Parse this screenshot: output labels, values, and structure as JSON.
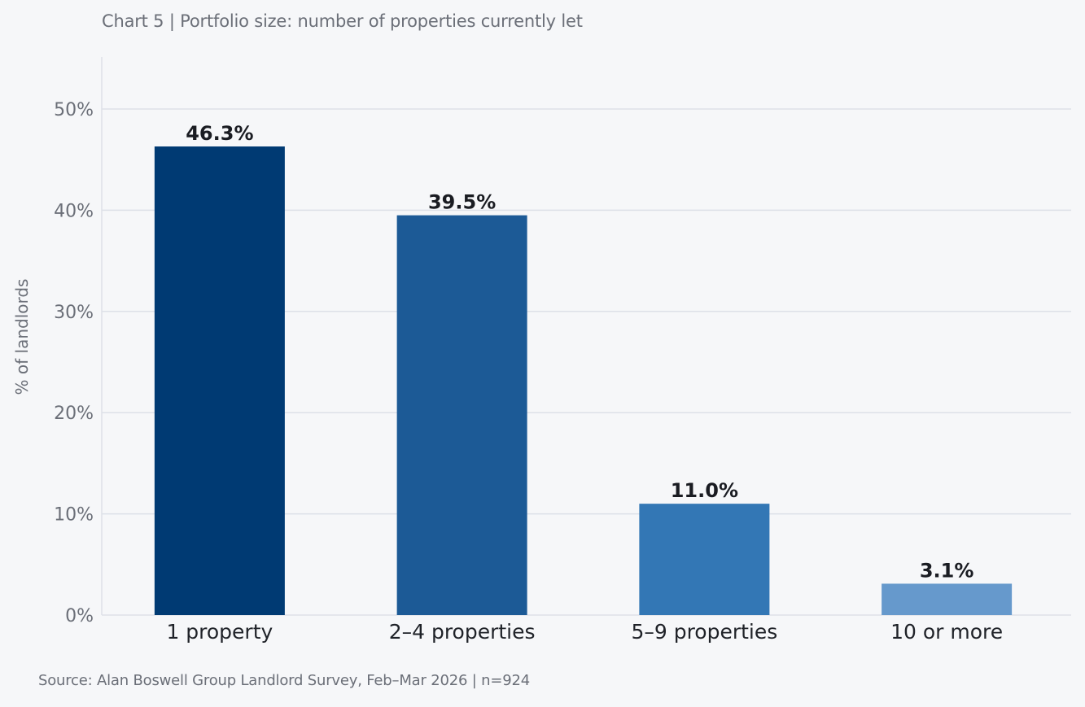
{
  "chart_data": {
    "type": "bar",
    "title": "Chart 5  |  Portfolio size: number of properties currently let",
    "categories": [
      "1 property",
      "2–4 properties",
      "5–9 properties",
      "10 or more"
    ],
    "values": [
      46.3,
      39.5,
      11.0,
      3.1
    ],
    "value_labels": [
      "46.3%",
      "39.5%",
      "11.0%",
      "3.1%"
    ],
    "colors": [
      "#003a73",
      "#1c5a96",
      "#3377b5",
      "#6699cc"
    ],
    "xlabel": "",
    "ylabel": "% of landlords",
    "ylim": [
      0,
      55
    ],
    "yticks": [
      0,
      10,
      20,
      30,
      40,
      50
    ],
    "ytick_labels": [
      "0%",
      "10%",
      "20%",
      "30%",
      "40%",
      "50%"
    ],
    "grid": true,
    "legend": "none",
    "source": "Source: Alan Boswell Group Landlord Survey, Feb–Mar 2026  |  n=924"
  }
}
